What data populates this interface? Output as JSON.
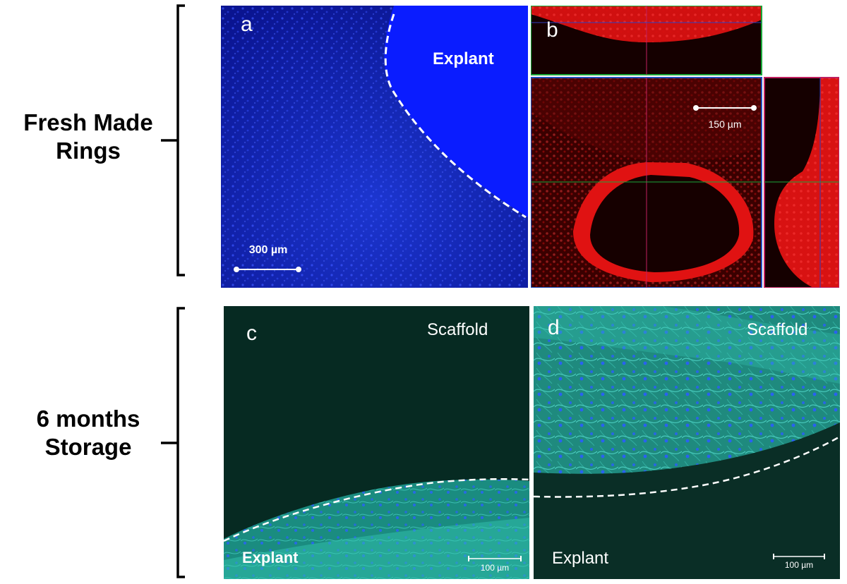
{
  "rows": [
    {
      "label_lines": [
        "Fresh Made",
        "Rings"
      ]
    },
    {
      "label_lines": [
        "6 months",
        "Storage"
      ]
    }
  ],
  "panels": {
    "a": {
      "letter": "a",
      "region_label": "Explant",
      "scale_label": "300 µm"
    },
    "b": {
      "letter": "b",
      "scale_label": "150 µm"
    },
    "c": {
      "letter": "c",
      "top_label": "Scaffold",
      "bottom_label": "Explant",
      "scale_label": "100 µm"
    },
    "d": {
      "letter": "d",
      "top_label": "Scaffold",
      "bottom_label": "Explant",
      "scale_label": "100 µm"
    }
  },
  "colors": {
    "dapi_blue": "#1428d8",
    "explant_blue": "#0a1cff",
    "red_stain": "#ff1a1a",
    "cyan_stain": "#2fd6c8",
    "dark_bg_c": "#062a22",
    "dark_bg_d": "#0a2e26"
  }
}
